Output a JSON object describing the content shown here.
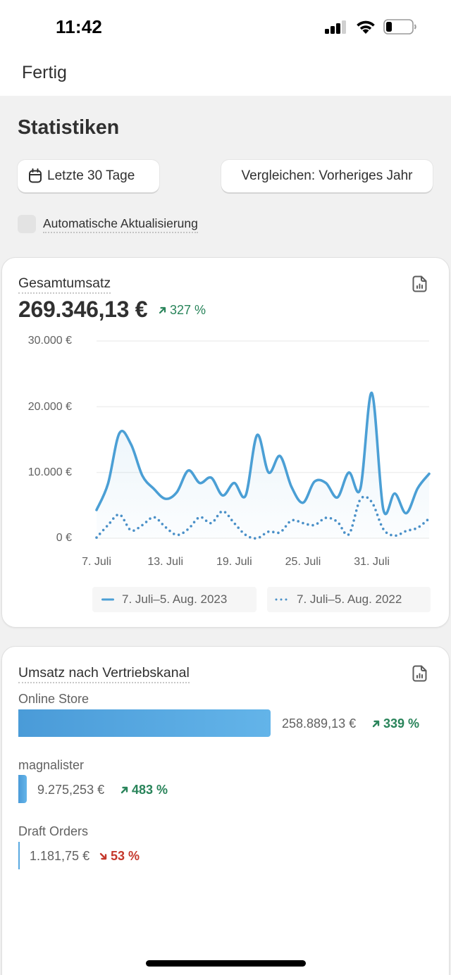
{
  "status_bar": {
    "time": "11:42",
    "icons": [
      "signal-icon",
      "wifi-icon",
      "battery-icon"
    ]
  },
  "header": {
    "done_label": "Fertig"
  },
  "page": {
    "title": "Statistiken"
  },
  "filters": {
    "date_range_icon": "calendar-icon",
    "date_range_label": "Letzte 30 Tage",
    "compare_label": "Vergleichen: Vorheriges Jahr",
    "auto_refresh_label": "Automatische Aktualisierung",
    "auto_refresh_checked": false
  },
  "total_sales_card": {
    "title": "Gesamtumsatz",
    "icon": "report-icon",
    "value": "269.346,13 €",
    "change": "327 %",
    "change_direction": "up"
  },
  "channel_card": {
    "title": "Umsatz nach Vertriebskanal",
    "icon": "report-icon",
    "channels": [
      {
        "name": "Online Store",
        "value": "258.889,13 €",
        "change": "339 %",
        "direction": "up"
      },
      {
        "name": "magnalister",
        "value": "9.275,253 €",
        "change": "483 %",
        "direction": "up"
      },
      {
        "name": "Draft Orders",
        "value": "1.181,75 €",
        "change": "53 %",
        "direction": "down"
      }
    ]
  },
  "colors": {
    "background": "#f1f1f1",
    "text_primary": "#303030",
    "text_secondary": "#616161",
    "positive": "#29845a",
    "negative": "#c5382c",
    "series_primary": "#4b9fd5",
    "series_comparison": "#4a90c8"
  },
  "chart_data": {
    "type": "line",
    "title": "Gesamtumsatz",
    "xlabel": "",
    "ylabel": "",
    "ylim": [
      0,
      30000
    ],
    "y_ticks": [
      0,
      10000,
      20000,
      30000
    ],
    "y_tick_labels": [
      "0 €",
      "10.000 €",
      "20.000 €",
      "30.000 €"
    ],
    "x_tick_index": [
      0,
      6,
      12,
      18,
      24
    ],
    "x_tick_labels": [
      "7. Juli",
      "13. Juli",
      "19. Juli",
      "25. Juli",
      "31. Juli"
    ],
    "grid": true,
    "legend_position": "bottom",
    "series": [
      {
        "name": "7. Juli–5. Aug. 2023",
        "style": "solid",
        "values": [
          4300,
          8300,
          16000,
          14300,
          9500,
          7500,
          6000,
          7000,
          10300,
          8400,
          9200,
          6500,
          8400,
          6500,
          15700,
          10000,
          12500,
          7800,
          5400,
          8600,
          8400,
          6200,
          10000,
          7500,
          22100,
          4400,
          6800,
          3800,
          7600,
          9800
        ]
      },
      {
        "name": "7. Juli–5. Aug. 2022",
        "style": "dotted",
        "values": [
          100,
          2000,
          3600,
          1200,
          2000,
          3200,
          1700,
          500,
          1400,
          3200,
          2300,
          4100,
          2300,
          500,
          0,
          1000,
          900,
          2700,
          2300,
          2000,
          3100,
          2500,
          600,
          5900,
          5500,
          1400,
          400,
          1100,
          1600,
          3000
        ]
      }
    ]
  }
}
